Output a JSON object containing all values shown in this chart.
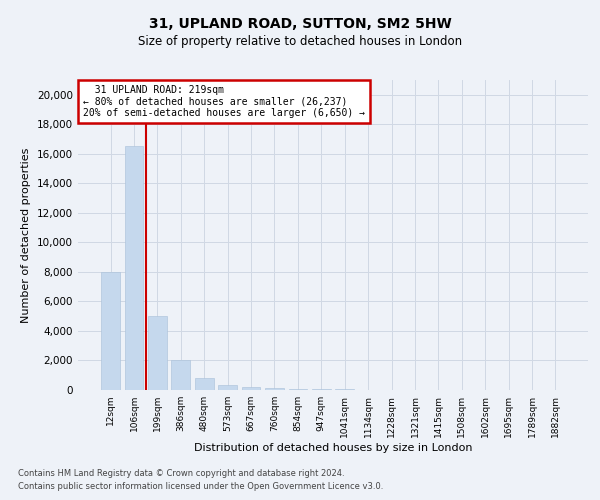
{
  "title": "31, UPLAND ROAD, SUTTON, SM2 5HW",
  "subtitle": "Size of property relative to detached houses in London",
  "xlabel": "Distribution of detached houses by size in London",
  "ylabel": "Number of detached properties",
  "footnote1": "Contains HM Land Registry data © Crown copyright and database right 2024.",
  "footnote2": "Contains public sector information licensed under the Open Government Licence v3.0.",
  "annotation_title": "31 UPLAND ROAD: 219sqm",
  "annotation_line1": "← 80% of detached houses are smaller (26,237)",
  "annotation_line2": "20% of semi-detached houses are larger (6,650) →",
  "bar_categories": [
    "12sqm",
    "106sqm",
    "199sqm",
    "386sqm",
    "480sqm",
    "573sqm",
    "667sqm",
    "760sqm",
    "854sqm",
    "947sqm",
    "1041sqm",
    "1134sqm",
    "1228sqm",
    "1321sqm",
    "1415sqm",
    "1508sqm",
    "1602sqm",
    "1695sqm",
    "1789sqm",
    "1882sqm"
  ],
  "bar_values": [
    8000,
    16500,
    5000,
    2000,
    800,
    350,
    200,
    120,
    80,
    55,
    40,
    30,
    22,
    18,
    14,
    12,
    10,
    8,
    7,
    6
  ],
  "property_line_index": 2,
  "bar_color": "#c5d8ed",
  "annotation_box_color": "#cc0000",
  "grid_color": "#d0d8e4",
  "bg_color": "#eef2f8",
  "ylim": [
    0,
    21000
  ],
  "yticks": [
    0,
    2000,
    4000,
    6000,
    8000,
    10000,
    12000,
    14000,
    16000,
    18000,
    20000
  ],
  "title_fontsize": 10,
  "subtitle_fontsize": 8.5,
  "footnote_fontsize": 6,
  "ylabel_fontsize": 8,
  "xlabel_fontsize": 8,
  "ytick_fontsize": 7.5,
  "xtick_fontsize": 6.5,
  "annotation_fontsize": 7
}
